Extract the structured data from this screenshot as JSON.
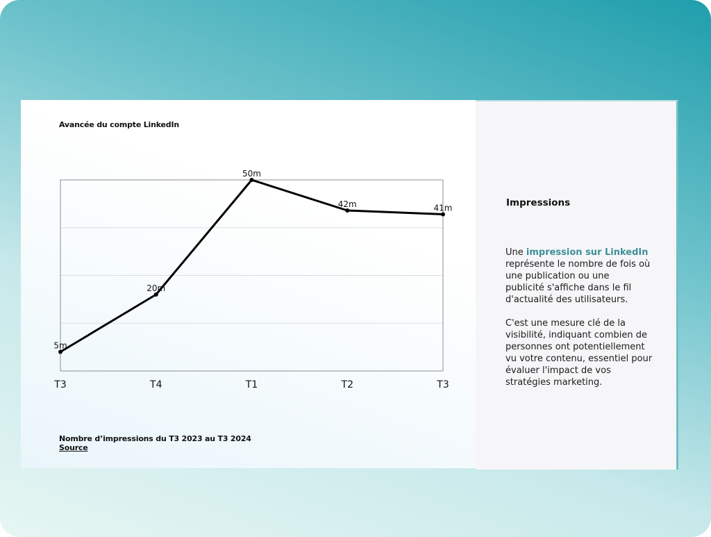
{
  "chart_data": {
    "type": "line",
    "title": "Avancée du compte LinkedIn",
    "categories": [
      "T3",
      "T4",
      "T1",
      "T2",
      "T3"
    ],
    "values": [
      5,
      20,
      50,
      42,
      41
    ],
    "data_labels": [
      "5m",
      "20m",
      "50m",
      "42m",
      "41m"
    ],
    "ylim": [
      0,
      50
    ],
    "grid": true,
    "xlabel": "",
    "ylabel": "",
    "line_color": "#000000"
  },
  "caption": "Nombre d’impressions du T3 2023 au T3 2024",
  "source_link": "Source",
  "side": {
    "title": "Impressions",
    "p1_prefix": "Une ",
    "p1_highlight": "impression sur LinkedIn",
    "p1_lines": [
      "représente le nombre de fois où",
      "une publication ou une",
      "publicité s'affiche dans le fil",
      "d'actualité des utilisateurs."
    ],
    "p2_lines": [
      "C'est une mesure clé de la",
      "visibilité, indiquant combien de",
      "personnes ont potentiellement",
      "vu votre contenu, essentiel pour",
      "évaluer l'impact de vos",
      "stratégies marketing."
    ],
    "highlight_color": "#3f8f9a"
  }
}
